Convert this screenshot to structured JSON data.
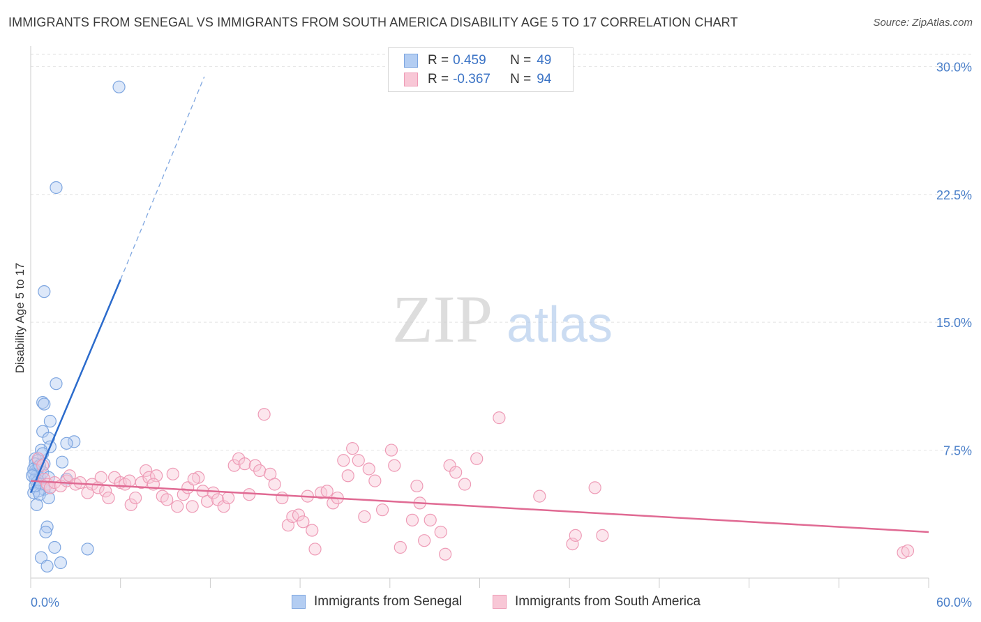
{
  "title": "IMMIGRANTS FROM SENEGAL VS IMMIGRANTS FROM SOUTH AMERICA DISABILITY AGE 5 TO 17 CORRELATION CHART",
  "source": "Source: ZipAtlas.com",
  "watermark": {
    "zip": "ZIP",
    "atlas": "atlas"
  },
  "legend": {
    "rows": [
      {
        "r_label": "R =",
        "r_value": "0.459",
        "n_label": "N =",
        "n_value": "49"
      },
      {
        "r_label": "R =",
        "r_value": "-0.367",
        "n_label": "N =",
        "n_value": "94"
      }
    ]
  },
  "chart_data": {
    "type": "scatter",
    "title": "IMMIGRANTS FROM SENEGAL VS IMMIGRANTS FROM SOUTH AMERICA DISABILITY AGE 5 TO 17 CORRELATION CHART",
    "xlabel": "",
    "ylabel": "Disability Age 5 to 17",
    "xlim": [
      0,
      60
    ],
    "ylim": [
      0,
      31.2
    ],
    "x_tick_labels": [
      "0.0%",
      "60.0%"
    ],
    "y_tick_labels": [
      "7.5%",
      "15.0%",
      "22.5%",
      "30.0%"
    ],
    "y_ticks": [
      7.5,
      15.0,
      22.5,
      30.0
    ],
    "x_ticks": [
      0,
      6,
      12,
      18,
      24,
      30,
      36,
      42,
      48,
      54,
      60
    ],
    "series": [
      {
        "name": "Immigrants from Senegal",
        "color": "#7ea6e0",
        "fill": "#b3cdf2",
        "line_color": "#2b6bcc",
        "trend": {
          "x0": 0.0,
          "y0": 5.0,
          "x1": 6.0,
          "y1": 17.5,
          "dash_to_x": 11.6,
          "dash_to_y": 29.4
        },
        "points": [
          [
            5.9,
            28.8
          ],
          [
            1.7,
            22.9
          ],
          [
            0.9,
            16.8
          ],
          [
            1.7,
            11.4
          ],
          [
            0.8,
            10.3
          ],
          [
            0.9,
            10.2
          ],
          [
            1.3,
            9.2
          ],
          [
            0.8,
            8.6
          ],
          [
            1.2,
            8.2
          ],
          [
            2.9,
            8.0
          ],
          [
            2.4,
            7.9
          ],
          [
            1.3,
            7.7
          ],
          [
            0.7,
            7.5
          ],
          [
            0.8,
            7.3
          ],
          [
            0.3,
            7.0
          ],
          [
            0.5,
            6.9
          ],
          [
            0.3,
            6.7
          ],
          [
            0.9,
            6.7
          ],
          [
            2.1,
            6.8
          ],
          [
            0.5,
            6.5
          ],
          [
            0.3,
            6.3
          ],
          [
            0.2,
            6.1
          ],
          [
            0.4,
            6.0
          ],
          [
            0.6,
            5.9
          ],
          [
            0.8,
            6.2
          ],
          [
            1.2,
            5.9
          ],
          [
            0.3,
            5.8
          ],
          [
            0.5,
            5.7
          ],
          [
            2.4,
            5.8
          ],
          [
            0.4,
            5.6
          ],
          [
            0.7,
            5.5
          ],
          [
            1.3,
            5.3
          ],
          [
            0.9,
            5.2
          ],
          [
            0.5,
            5.1
          ],
          [
            0.2,
            5.0
          ],
          [
            0.6,
            4.9
          ],
          [
            1.2,
            4.7
          ],
          [
            0.4,
            4.3
          ],
          [
            1.1,
            3.0
          ],
          [
            1.0,
            2.7
          ],
          [
            1.6,
            1.8
          ],
          [
            3.8,
            1.7
          ],
          [
            0.7,
            1.2
          ],
          [
            2.0,
            0.9
          ],
          [
            1.1,
            0.7
          ],
          [
            0.2,
            6.4
          ],
          [
            0.1,
            6.0
          ],
          [
            0.3,
            5.4
          ],
          [
            0.6,
            6.6
          ]
        ]
      },
      {
        "name": "Immigrants from South America",
        "color": "#ee9bb6",
        "fill": "#f8c7d6",
        "line_color": "#e06a93",
        "trend": {
          "x0": 0.0,
          "y0": 5.7,
          "x1": 60.0,
          "y1": 2.7
        },
        "points": [
          [
            0.5,
            7.0
          ],
          [
            0.8,
            6.6
          ],
          [
            0.9,
            5.8
          ],
          [
            1.1,
            5.5
          ],
          [
            1.3,
            5.3
          ],
          [
            1.6,
            5.6
          ],
          [
            2.0,
            5.4
          ],
          [
            2.4,
            5.7
          ],
          [
            2.6,
            6.0
          ],
          [
            3.0,
            5.5
          ],
          [
            3.3,
            5.6
          ],
          [
            3.8,
            5.0
          ],
          [
            4.1,
            5.5
          ],
          [
            4.5,
            5.3
          ],
          [
            4.7,
            5.9
          ],
          [
            5.0,
            5.1
          ],
          [
            5.2,
            4.7
          ],
          [
            5.6,
            5.9
          ],
          [
            6.0,
            5.6
          ],
          [
            6.3,
            5.5
          ],
          [
            6.6,
            5.7
          ],
          [
            6.7,
            4.3
          ],
          [
            7.0,
            4.7
          ],
          [
            7.4,
            5.6
          ],
          [
            7.7,
            6.3
          ],
          [
            7.9,
            5.9
          ],
          [
            8.4,
            6.0
          ],
          [
            8.8,
            4.8
          ],
          [
            9.1,
            4.6
          ],
          [
            9.5,
            6.1
          ],
          [
            9.8,
            4.2
          ],
          [
            10.2,
            4.9
          ],
          [
            10.5,
            5.3
          ],
          [
            10.8,
            4.2
          ],
          [
            11.2,
            5.9
          ],
          [
            11.5,
            5.1
          ],
          [
            11.8,
            4.5
          ],
          [
            12.2,
            5.0
          ],
          [
            12.5,
            4.6
          ],
          [
            12.9,
            4.2
          ],
          [
            13.2,
            4.7
          ],
          [
            13.6,
            6.6
          ],
          [
            13.9,
            7.0
          ],
          [
            14.3,
            6.7
          ],
          [
            14.6,
            4.9
          ],
          [
            15.0,
            6.6
          ],
          [
            15.3,
            6.3
          ],
          [
            15.6,
            9.6
          ],
          [
            16.0,
            6.1
          ],
          [
            16.3,
            5.5
          ],
          [
            16.8,
            4.7
          ],
          [
            17.2,
            3.1
          ],
          [
            17.5,
            3.6
          ],
          [
            17.9,
            3.7
          ],
          [
            18.2,
            3.3
          ],
          [
            18.5,
            4.8
          ],
          [
            18.8,
            2.8
          ],
          [
            19.0,
            1.7
          ],
          [
            19.4,
            5.0
          ],
          [
            19.8,
            5.1
          ],
          [
            20.2,
            4.4
          ],
          [
            20.5,
            4.7
          ],
          [
            20.9,
            6.9
          ],
          [
            21.2,
            6.0
          ],
          [
            21.5,
            7.6
          ],
          [
            21.9,
            6.9
          ],
          [
            22.3,
            3.6
          ],
          [
            22.6,
            6.4
          ],
          [
            23.0,
            5.7
          ],
          [
            23.5,
            4.0
          ],
          [
            24.1,
            7.5
          ],
          [
            24.3,
            6.6
          ],
          [
            24.7,
            1.8
          ],
          [
            25.5,
            3.4
          ],
          [
            25.8,
            5.4
          ],
          [
            26.0,
            4.4
          ],
          [
            26.3,
            2.2
          ],
          [
            26.7,
            3.4
          ],
          [
            27.4,
            2.7
          ],
          [
            27.7,
            1.4
          ],
          [
            28.0,
            6.6
          ],
          [
            28.4,
            6.2
          ],
          [
            29.0,
            5.5
          ],
          [
            29.8,
            7.0
          ],
          [
            31.3,
            9.4
          ],
          [
            34.0,
            4.8
          ],
          [
            36.2,
            2.0
          ],
          [
            36.4,
            2.5
          ],
          [
            37.7,
            5.3
          ],
          [
            38.2,
            2.5
          ],
          [
            58.3,
            1.5
          ],
          [
            58.6,
            1.6
          ],
          [
            8.2,
            5.5
          ],
          [
            10.9,
            5.8
          ]
        ]
      }
    ]
  },
  "bottom_legend": [
    {
      "label": "Immigrants from Senegal"
    },
    {
      "label": "Immigrants from South America"
    }
  ]
}
